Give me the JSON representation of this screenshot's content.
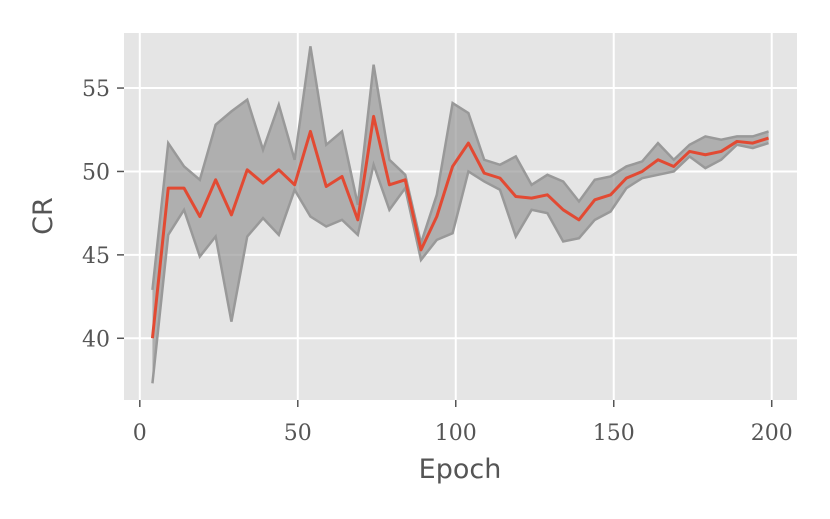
{
  "chart_data": {
    "type": "line",
    "x_label": "Epoch",
    "y_label": "CR",
    "x": [
      4,
      9,
      14,
      19,
      24,
      29,
      34,
      39,
      44,
      49,
      54,
      59,
      64,
      69,
      74,
      79,
      84,
      89,
      94,
      99,
      104,
      109,
      114,
      119,
      124,
      129,
      134,
      139,
      144,
      149,
      154,
      159,
      164,
      169,
      174,
      179,
      184,
      189,
      194,
      199
    ],
    "series": [
      {
        "color": "#e24a33",
        "band_color": "#999999",
        "values": [
          40.0,
          49.0,
          49.0,
          47.3,
          49.5,
          47.4,
          50.1,
          49.3,
          50.1,
          49.2,
          52.4,
          49.1,
          49.7,
          47.1,
          53.3,
          49.2,
          49.5,
          45.3,
          47.3,
          50.3,
          51.7,
          49.9,
          49.6,
          48.5,
          48.4,
          48.6,
          47.7,
          47.1,
          48.3,
          48.6,
          49.6,
          50.0,
          50.7,
          50.3,
          51.2,
          51.0,
          51.2,
          51.8,
          51.7,
          52.0
        ],
        "upper": [
          42.9,
          51.7,
          50.3,
          49.5,
          52.8,
          53.6,
          54.3,
          51.3,
          54.0,
          50.7,
          57.5,
          51.6,
          52.4,
          48.0,
          56.4,
          50.7,
          49.8,
          45.7,
          48.6,
          54.1,
          53.5,
          50.7,
          50.4,
          50.9,
          49.2,
          49.8,
          49.4,
          48.2,
          49.5,
          49.7,
          50.3,
          50.6,
          51.7,
          50.7,
          51.6,
          52.1,
          51.9,
          52.1,
          52.1,
          52.4
        ],
        "lower": [
          37.3,
          46.2,
          47.7,
          44.9,
          46.1,
          41.0,
          46.1,
          47.2,
          46.2,
          48.9,
          47.3,
          46.7,
          47.1,
          46.2,
          50.4,
          47.7,
          49.0,
          44.7,
          45.9,
          46.3,
          50.0,
          49.4,
          48.9,
          46.1,
          47.7,
          47.5,
          45.8,
          46.0,
          47.1,
          47.6,
          49.0,
          49.6,
          49.8,
          50.0,
          50.9,
          50.2,
          50.7,
          51.6,
          51.4,
          51.7
        ]
      }
    ],
    "xlim": [
      -5,
      208
    ],
    "ylim": [
      36.3,
      58.3
    ],
    "xticks": [
      0,
      50,
      100,
      150,
      200
    ],
    "yticks": [
      40,
      45,
      50,
      55
    ],
    "grid": true
  }
}
